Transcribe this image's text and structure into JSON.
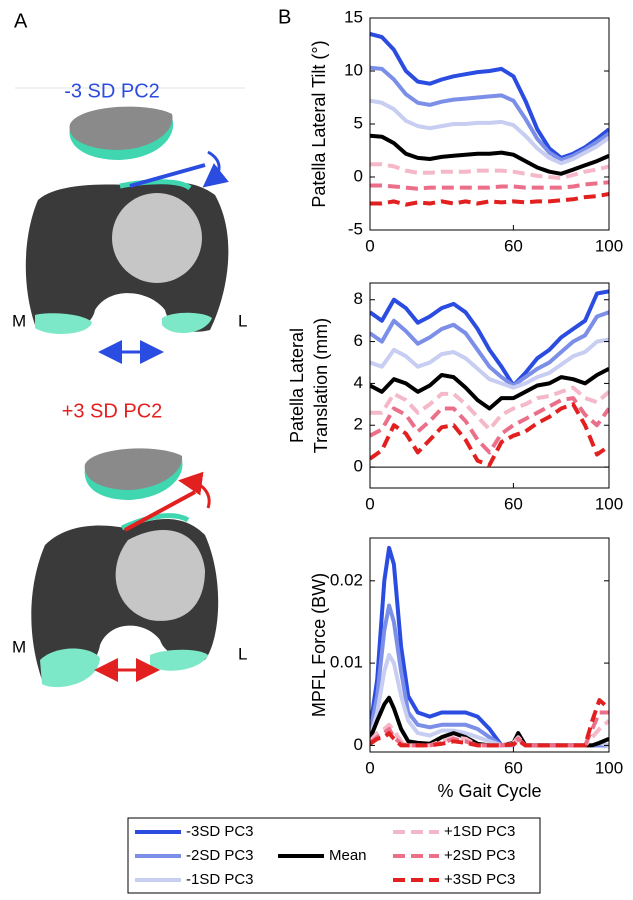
{
  "panel_a": {
    "label": "A",
    "top": {
      "title": "-3 SD PC2",
      "medial": "M",
      "lateral": "L"
    },
    "bottom": {
      "title": "+3 SD PC2",
      "medial": "M",
      "lateral": "L"
    }
  },
  "panel_b_label": "B",
  "chart_data": [
    {
      "type": "line",
      "ylabel": "Patella Lateral Tilt (°)",
      "x": [
        0,
        5,
        10,
        15,
        20,
        25,
        30,
        35,
        40,
        45,
        50,
        55,
        60,
        65,
        70,
        75,
        80,
        85,
        90,
        95,
        100
      ],
      "xlim": [
        0,
        100
      ],
      "xticks": [
        0,
        60,
        100
      ],
      "ylim": [
        -5,
        15
      ],
      "yticks": [
        -5,
        0,
        5,
        10,
        15
      ],
      "series": [
        {
          "name": "-3SD PC3",
          "color": "#2b4ce0",
          "dashed": false,
          "values": [
            13.5,
            13.2,
            12,
            10,
            9,
            8.8,
            9.2,
            9.5,
            9.7,
            9.9,
            10,
            10.2,
            9.5,
            7.2,
            4.5,
            2.7,
            1.8,
            2.2,
            2.8,
            3.6,
            4.5
          ]
        },
        {
          "name": "-2SD PC3",
          "color": "#7b8ee8",
          "dashed": false,
          "values": [
            10.3,
            10.2,
            9.2,
            7.8,
            7,
            6.8,
            7.1,
            7.3,
            7.4,
            7.5,
            7.6,
            7.7,
            7.2,
            5.5,
            3.6,
            2.3,
            1.6,
            2,
            2.6,
            3.3,
            4.1
          ]
        },
        {
          "name": "-1SD PC3",
          "color": "#c8cdf2",
          "dashed": false,
          "values": [
            7.2,
            7,
            6.4,
            5.3,
            4.8,
            4.6,
            4.8,
            5,
            5,
            5.1,
            5.1,
            5.2,
            4.9,
            3.9,
            2.7,
            1.8,
            1.3,
            1.7,
            2.3,
            2.9,
            3.7
          ]
        },
        {
          "name": "Mean",
          "color": "#000000",
          "dashed": false,
          "values": [
            3.9,
            3.8,
            3.2,
            2.2,
            1.8,
            1.7,
            1.9,
            2,
            2.1,
            2.2,
            2.2,
            2.3,
            2.1,
            1.5,
            0.9,
            0.5,
            0.3,
            0.7,
            1.1,
            1.5,
            2
          ]
        },
        {
          "name": "+1SD PC3",
          "color": "#f5b8c8",
          "dashed": true,
          "values": [
            1.2,
            1.2,
            1,
            0.6,
            0.4,
            0.4,
            0.5,
            0.5,
            0.5,
            0.6,
            0.6,
            0.6,
            0.5,
            0.3,
            0.1,
            0,
            -0.1,
            0.2,
            0.5,
            0.7,
            1
          ]
        },
        {
          "name": "+2SD PC3",
          "color": "#ec6f8a",
          "dashed": true,
          "values": [
            -0.8,
            -0.8,
            -0.9,
            -1,
            -1.1,
            -1,
            -1,
            -1,
            -1,
            -1,
            -1,
            -0.9,
            -0.9,
            -1,
            -1,
            -1,
            -1,
            -0.9,
            -0.7,
            -0.6,
            -0.5
          ]
        },
        {
          "name": "+3SD PC3",
          "color": "#e32020",
          "dashed": true,
          "values": [
            -2.5,
            -2.5,
            -2.3,
            -2.6,
            -2.4,
            -2.5,
            -2.3,
            -2.5,
            -2.3,
            -2.5,
            -2.3,
            -2.4,
            -2.3,
            -2.4,
            -2.3,
            -2.3,
            -2.2,
            -2.1,
            -1.9,
            -1.8,
            -1.6
          ]
        }
      ]
    },
    {
      "type": "line",
      "ylabel": [
        "Patella Lateral",
        "Translation (mm)"
      ],
      "zero_line": true,
      "x": [
        0,
        5,
        10,
        15,
        20,
        25,
        30,
        35,
        40,
        45,
        50,
        55,
        60,
        65,
        70,
        75,
        80,
        85,
        90,
        95,
        100
      ],
      "xlim": [
        0,
        100
      ],
      "xticks": [
        0,
        60,
        100
      ],
      "ylim": [
        -1,
        8.8
      ],
      "yticks": [
        0,
        2,
        4,
        6,
        8
      ],
      "series": [
        {
          "values": [
            7.4,
            7,
            8,
            7.6,
            6.9,
            7.2,
            7.6,
            7.8,
            7.4,
            6.6,
            5.6,
            4.8,
            3.9,
            4.5,
            5.2,
            5.6,
            6.2,
            6.6,
            7,
            8.3,
            8.4
          ]
        },
        {
          "values": [
            6.4,
            6,
            7,
            6.5,
            5.9,
            6.2,
            6.6,
            6.8,
            6.4,
            5.6,
            4.8,
            4.3,
            3.9,
            4.3,
            4.7,
            5,
            5.5,
            6,
            6.3,
            7.2,
            7.4
          ]
        },
        {
          "values": [
            5,
            4.8,
            5.6,
            5.3,
            4.8,
            5,
            5.4,
            5.5,
            5.2,
            4.7,
            4.2,
            4,
            3.8,
            4,
            4.3,
            4.5,
            4.9,
            5.3,
            5.5,
            6,
            6.1
          ]
        },
        {
          "values": [
            3.9,
            3.6,
            4.2,
            4,
            3.6,
            3.9,
            4.4,
            4.3,
            3.8,
            3.2,
            2.8,
            3.3,
            3.3,
            3.6,
            3.9,
            4,
            4.3,
            4.2,
            4,
            4.4,
            4.7
          ]
        },
        {
          "values": [
            2.6,
            2.6,
            3.5,
            3.2,
            2.6,
            3,
            3.5,
            3.5,
            3,
            2.4,
            1.8,
            2.5,
            2.8,
            3,
            3.3,
            3.4,
            3.6,
            3.8,
            3.3,
            3.1,
            3.6
          ]
        },
        {
          "values": [
            1.5,
            1.8,
            2.8,
            2.5,
            1.7,
            2.2,
            2.8,
            2.8,
            2.2,
            1.3,
            0.7,
            1.6,
            2,
            2.3,
            2.6,
            2.9,
            3.2,
            3.3,
            2.5,
            2,
            2.8
          ]
        },
        {
          "values": [
            0.4,
            0.8,
            2,
            1.6,
            0.7,
            1.3,
            1.9,
            2,
            1.3,
            0.3,
            0.1,
            1.2,
            1.5,
            1.7,
            2.1,
            2.4,
            2.8,
            3,
            2,
            0.6,
            1
          ]
        }
      ]
    },
    {
      "type": "line",
      "ylabel": "MPFL Force (BW)",
      "xlabel": "% Gait Cycle",
      "x": [
        0,
        3,
        6,
        8,
        10,
        13,
        16,
        20,
        25,
        30,
        35,
        40,
        45,
        50,
        55,
        60,
        62,
        65,
        70,
        80,
        90,
        93,
        96,
        100
      ],
      "xlim": [
        0,
        100
      ],
      "xticks": [
        0,
        60,
        100
      ],
      "ylim": [
        -0.0008,
        0.0252
      ],
      "yticks": [
        0,
        0.01,
        0.02
      ],
      "series": [
        {
          "values": [
            0.002,
            0.008,
            0.02,
            0.024,
            0.022,
            0.012,
            0.006,
            0.004,
            0.0035,
            0.004,
            0.004,
            0.004,
            0.0035,
            0.002,
            0,
            0,
            0.001,
            0,
            0,
            0,
            0,
            0,
            0,
            0
          ]
        },
        {
          "values": [
            0.0015,
            0.006,
            0.014,
            0.017,
            0.015,
            0.009,
            0.004,
            0.0025,
            0.0022,
            0.0025,
            0.0025,
            0.0025,
            0.002,
            0.001,
            0,
            0,
            0.001,
            0,
            0,
            0,
            0,
            0,
            0,
            0
          ]
        },
        {
          "values": [
            0.001,
            0.004,
            0.009,
            0.011,
            0.01,
            0.006,
            0.003,
            0.0015,
            0.0012,
            0.0018,
            0.0018,
            0.0015,
            0.001,
            0.0005,
            0,
            0,
            0.0012,
            0,
            0,
            0,
            0,
            0,
            0.0003,
            0
          ]
        },
        {
          "values": [
            0.0008,
            0.003,
            0.005,
            0.0058,
            0.0045,
            0.002,
            0.0005,
            0.0003,
            0.0002,
            0.001,
            0.0015,
            0.001,
            0.0002,
            0,
            0,
            0.0003,
            0.0015,
            0,
            0,
            0,
            0,
            0,
            0.0003,
            0.0008
          ]
        },
        {
          "values": [
            0.0005,
            0.0015,
            0.002,
            0.0025,
            0.0018,
            0.0005,
            0,
            0,
            0,
            0.0005,
            0.001,
            0.0008,
            0,
            0,
            0,
            0.0003,
            0.001,
            0,
            0,
            0,
            0,
            0.001,
            0.002,
            0.003
          ]
        },
        {
          "values": [
            0.0003,
            0.001,
            0.0015,
            0.002,
            0.001,
            0.0002,
            0,
            0,
            0,
            0.0003,
            0.0008,
            0.0005,
            0,
            0,
            0,
            0.0002,
            0.0008,
            0,
            0,
            0,
            0,
            0.002,
            0.004,
            0.004
          ]
        },
        {
          "values": [
            0.0002,
            0.0008,
            0.001,
            0.0015,
            0.0008,
            0,
            0,
            0,
            0,
            0.0002,
            0.0005,
            0.0003,
            0,
            0,
            0,
            0.0001,
            0.0006,
            0,
            0,
            0,
            0,
            0.003,
            0.0055,
            0.0045
          ]
        }
      ]
    }
  ]
}
